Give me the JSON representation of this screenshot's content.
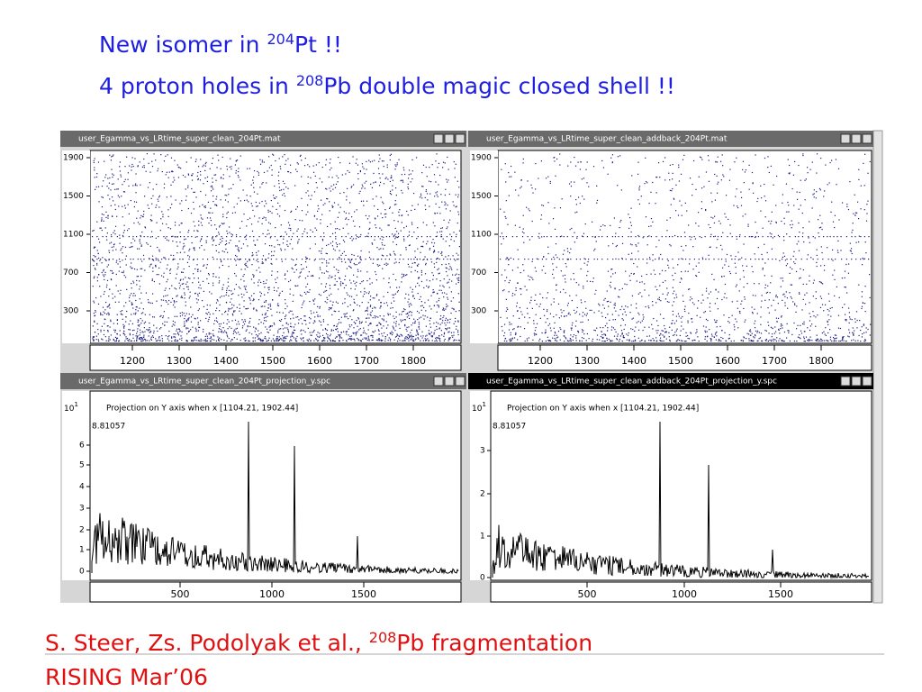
{
  "title": {
    "line1": [
      "New isomer in ",
      "204",
      "Pt !!"
    ],
    "line2": [
      "4 proton holes in ",
      "208",
      "Pb double magic closed shell !!"
    ]
  },
  "matrices": [
    {
      "title": "user_Egamma_vs_LRtime_super_clean_204Pt.mat",
      "yticks": [
        "1900",
        "1500",
        "1100",
        "700",
        "300"
      ],
      "xticks": [
        "1200",
        "1300",
        "1400",
        "1500",
        "1600",
        "1700",
        "1800"
      ]
    },
    {
      "title": "user_Egamma_vs_LRtime_super_clean_addback_204Pt.mat",
      "yticks": [
        "1900",
        "1500",
        "1100",
        "700",
        "300"
      ],
      "xticks": [
        "1200",
        "1300",
        "1400",
        "1500",
        "1600",
        "1700",
        "1800"
      ]
    }
  ],
  "spectra": [
    {
      "title": "user_Egamma_vs_LRtime_super_clean_204Pt_projection_y.spc",
      "ytop": [
        "10",
        "1"
      ],
      "yticks": [
        "6",
        "5",
        "4",
        "3",
        "2",
        "1",
        "0"
      ],
      "xticks": [
        "500",
        "1000",
        "1500"
      ],
      "annotation": "Projection on Y axis when x [1104.21, 1902.44]",
      "max": "8.81057"
    },
    {
      "title": "user_Egamma_vs_LRtime_super_clean_addback_204Pt_projection_y.spc",
      "ytop": [
        "10",
        "1"
      ],
      "yticks": [
        "3",
        "2",
        "1",
        "0"
      ],
      "xticks": [
        "500",
        "1000",
        "1500"
      ],
      "annotation": "Projection on Y axis when x [1104.21, 1902.44]",
      "max": "8.81057"
    }
  ],
  "footer": {
    "line1": [
      "S. Steer, Zs. Podolyak et al., ",
      "208",
      "Pb fragmentation"
    ],
    "line2": "RISING Mar’06"
  }
}
